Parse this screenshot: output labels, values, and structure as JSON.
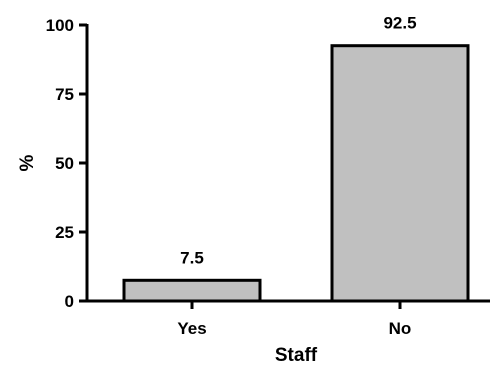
{
  "chart_data": {
    "type": "bar",
    "title": "",
    "xlabel": "Staff",
    "ylabel": "%",
    "categories": [
      "Yes",
      "No"
    ],
    "values": [
      7.5,
      92.5
    ],
    "data_labels": [
      "7.5",
      "92.5"
    ],
    "ylim": [
      0,
      100
    ],
    "yticks": [
      0,
      25,
      50,
      75,
      100
    ],
    "grid": false,
    "legend": "none",
    "bar_color": "#c0c0c0",
    "edge_color": "#000000"
  }
}
